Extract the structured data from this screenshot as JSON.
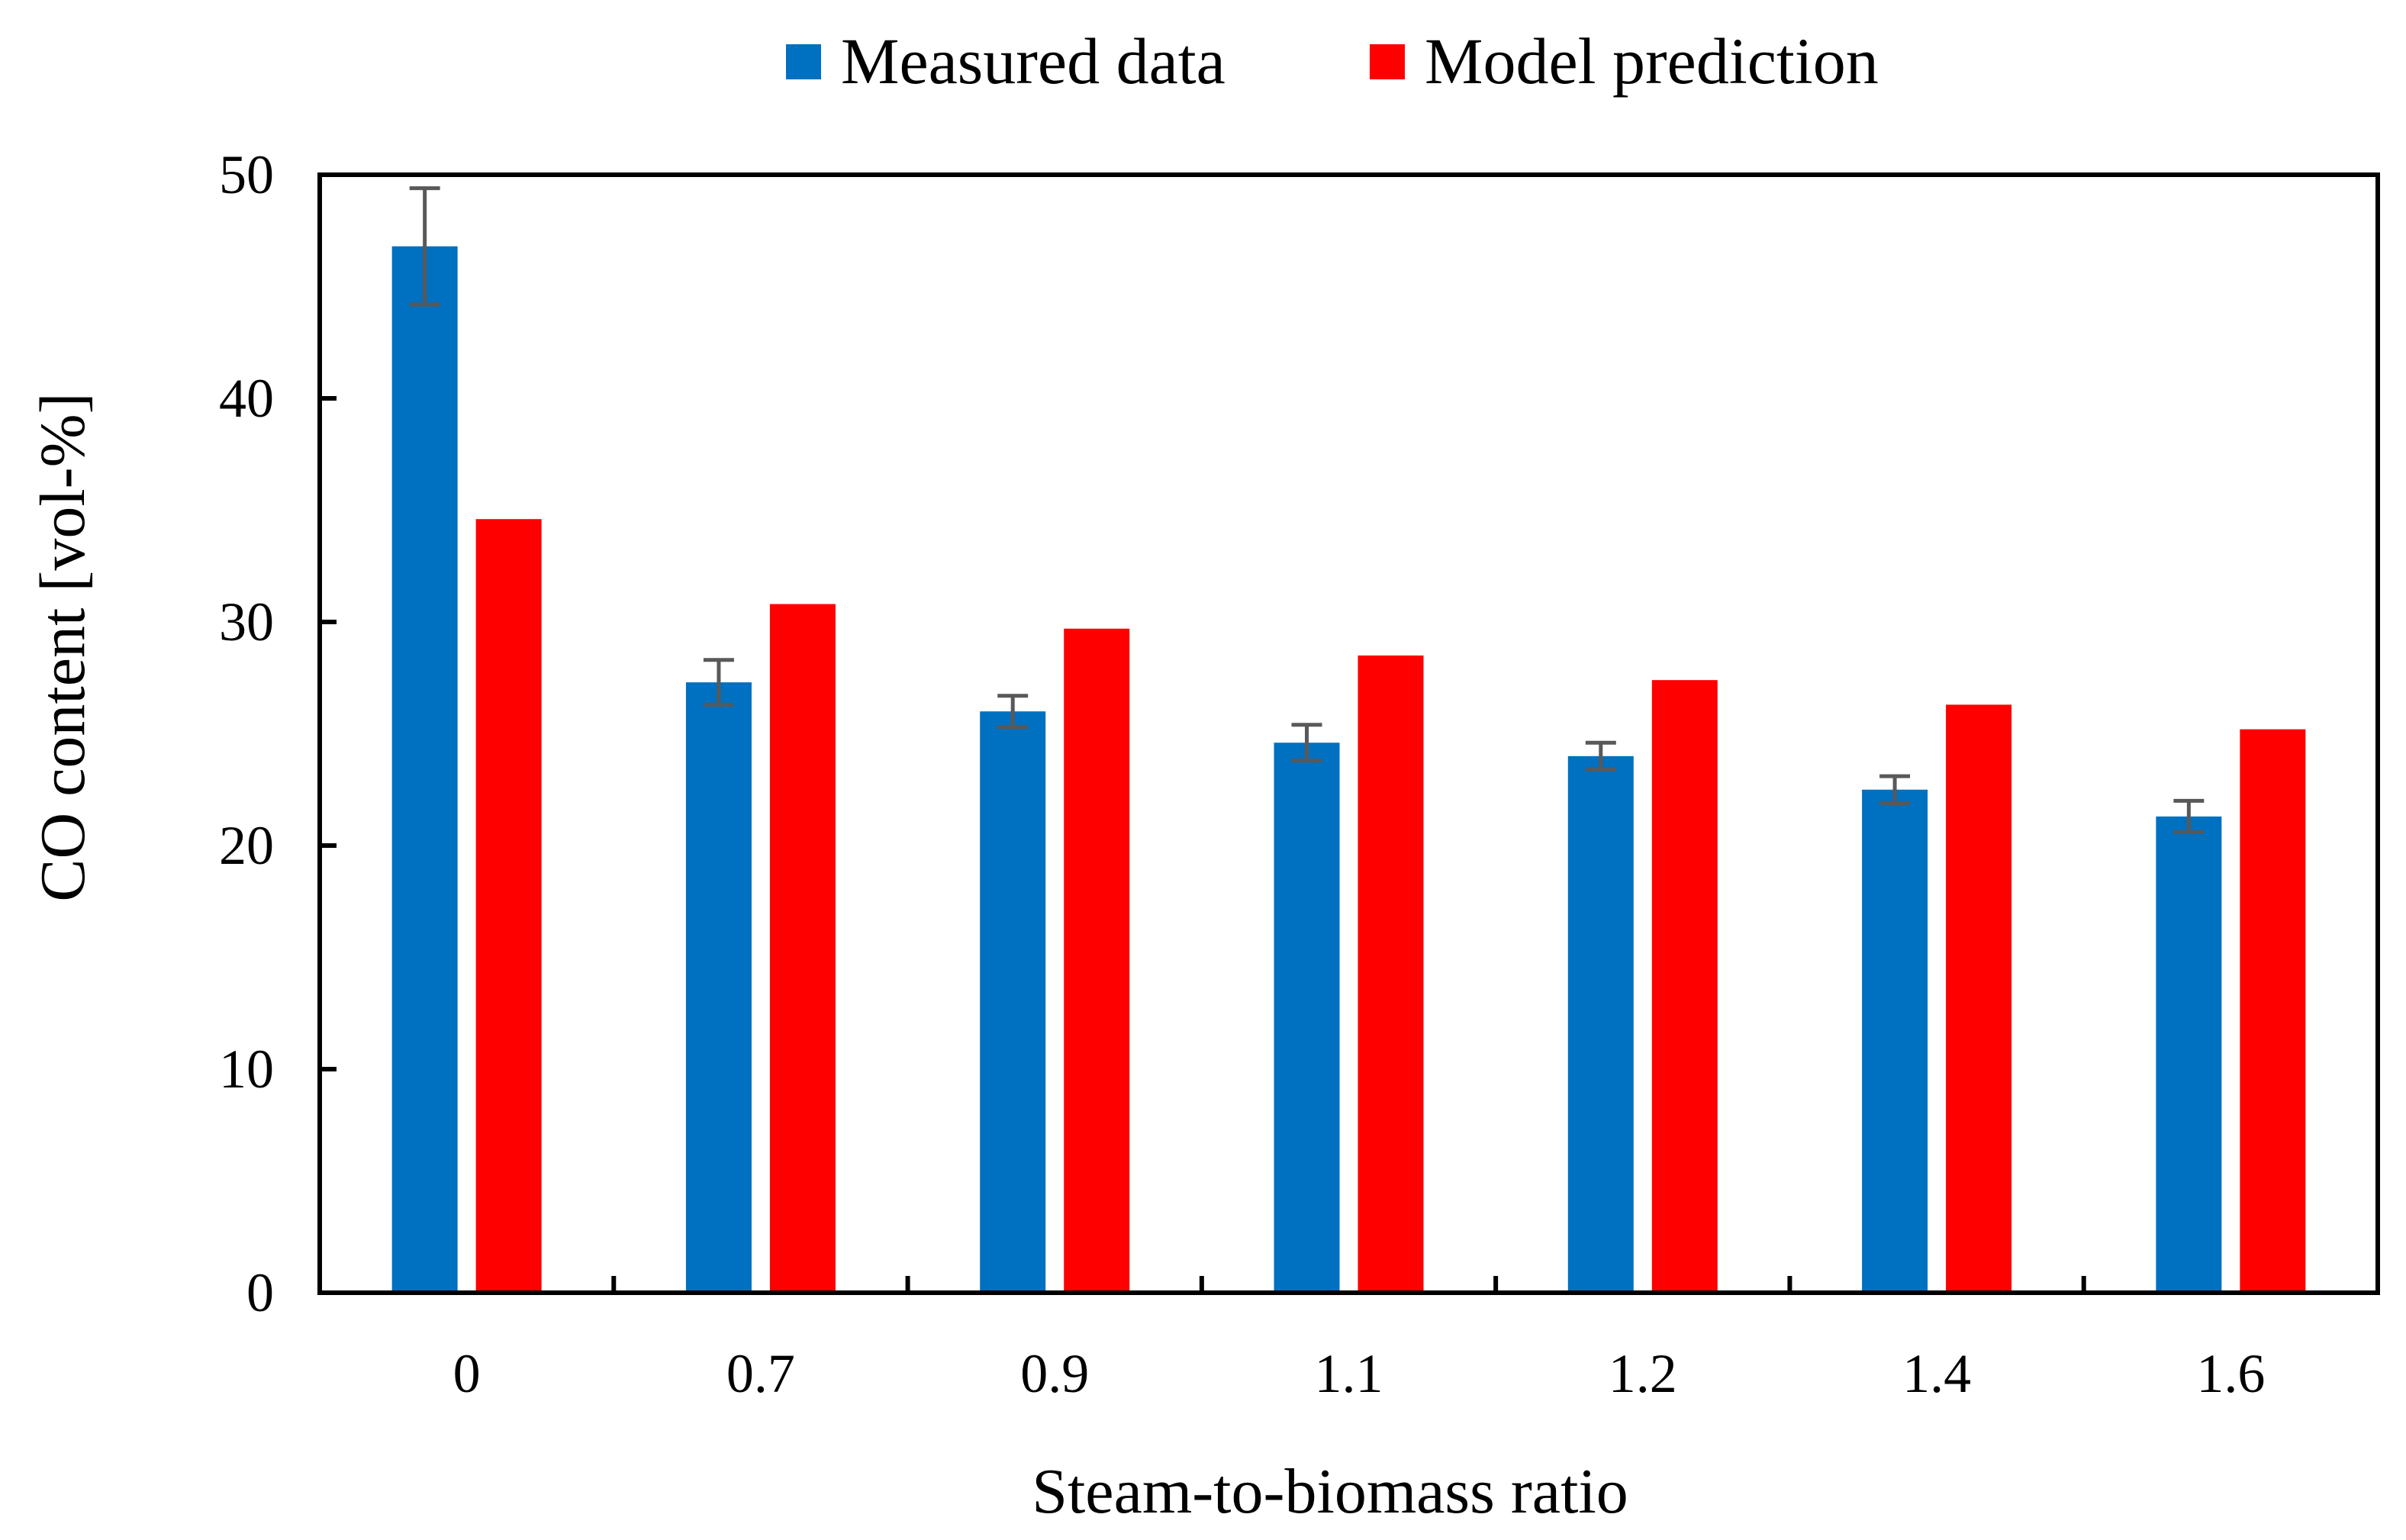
{
  "chart_data": {
    "type": "bar",
    "title": "",
    "xlabel": "Steam-to-biomass ratio",
    "ylabel": "CO content [vol-%]",
    "categories": [
      "0",
      "0.7",
      "0.9",
      "1.1",
      "1.2",
      "1.4",
      "1.6"
    ],
    "ylim": [
      0,
      50
    ],
    "yticks": [
      0,
      10,
      20,
      30,
      40,
      50
    ],
    "grid": false,
    "legend_position": "top-center",
    "series": [
      {
        "name": "Measured data",
        "color": "#0070C0",
        "values": [
          46.8,
          27.3,
          26.0,
          24.6,
          24.0,
          22.5,
          21.3
        ],
        "error": [
          2.6,
          1.0,
          0.7,
          0.8,
          0.6,
          0.6,
          0.7
        ]
      },
      {
        "name": "Model prediction",
        "color": "#FF0000",
        "values": [
          34.6,
          30.8,
          29.7,
          28.5,
          27.4,
          26.3,
          25.2
        ]
      }
    ],
    "error_bar_color": "#595959"
  }
}
